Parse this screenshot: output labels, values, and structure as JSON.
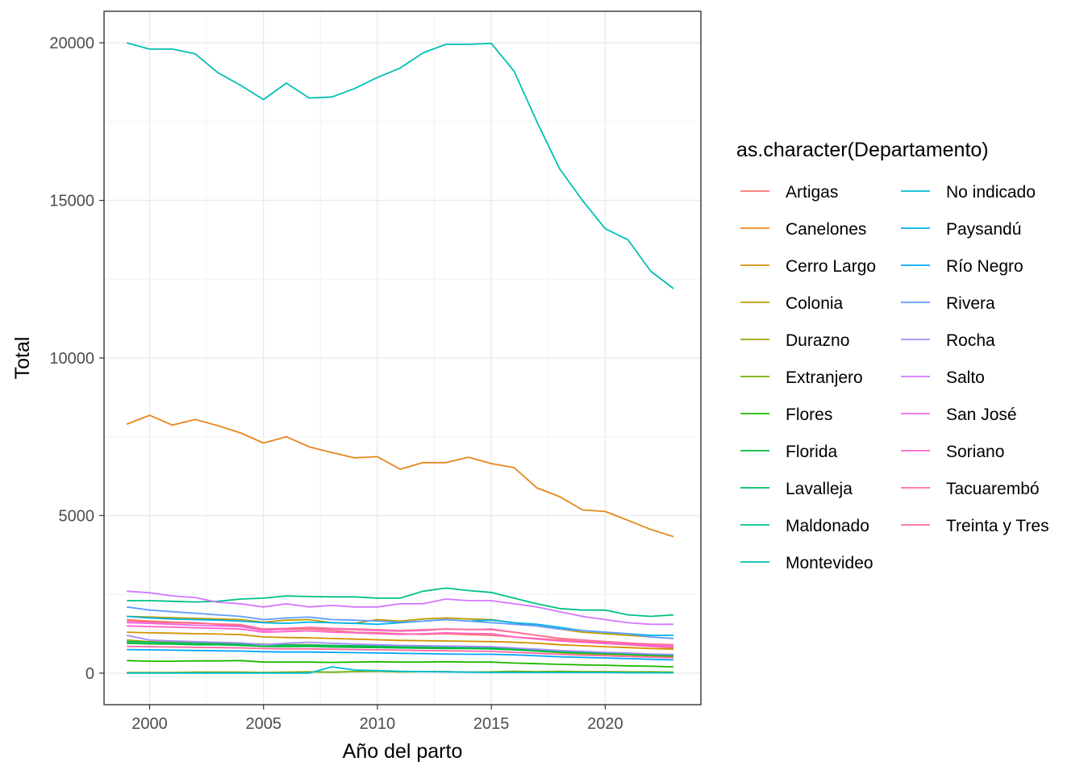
{
  "chart_data": {
    "type": "line",
    "xlabel": "Año del parto",
    "ylabel": "Total",
    "xlim": [
      1998,
      2024.2
    ],
    "ylim": [
      -1000,
      21000
    ],
    "x_ticks": [
      2000,
      2005,
      2010,
      2015,
      2020
    ],
    "y_ticks": [
      0,
      5000,
      10000,
      15000,
      20000
    ],
    "grid": true,
    "legend_title": "as.character(Departamento)",
    "legend_position": "right",
    "x": [
      1999,
      2000,
      2001,
      2002,
      2003,
      2004,
      2005,
      2006,
      2007,
      2008,
      2009,
      2010,
      2011,
      2012,
      2013,
      2014,
      2015,
      2016,
      2017,
      2018,
      2019,
      2020,
      2021,
      2022,
      2023
    ],
    "series": [
      {
        "name": "Artigas",
        "color": "#F8766D",
        "values": [
          1700,
          1650,
          1620,
          1600,
          1550,
          1500,
          1400,
          1380,
          1400,
          1350,
          1300,
          1280,
          1250,
          1230,
          1250,
          1220,
          1200,
          1150,
          1100,
          1050,
          1000,
          950,
          900,
          850,
          800
        ]
      },
      {
        "name": "Canelones",
        "color": "#E7861B",
        "values": [
          7900,
          8180,
          7870,
          8050,
          7850,
          7620,
          7300,
          7500,
          7180,
          7000,
          6830,
          6870,
          6470,
          6680,
          6680,
          6850,
          6650,
          6520,
          5880,
          5600,
          5180,
          5130,
          4850,
          4560,
          4330
        ]
      },
      {
        "name": "Cerro Largo",
        "color": "#D39200",
        "values": [
          1300,
          1280,
          1270,
          1250,
          1240,
          1220,
          1150,
          1130,
          1120,
          1100,
          1080,
          1060,
          1040,
          1030,
          1020,
          1010,
          1000,
          980,
          950,
          900,
          870,
          840,
          810,
          780,
          760
        ]
      },
      {
        "name": "Colonia",
        "color": "#BB9D00",
        "values": [
          1800,
          1780,
          1760,
          1740,
          1720,
          1700,
          1620,
          1680,
          1700,
          1600,
          1580,
          1700,
          1650,
          1720,
          1750,
          1720,
          1700,
          1600,
          1500,
          1400,
          1300,
          1250,
          1200,
          1150,
          1100
        ]
      },
      {
        "name": "Durazno",
        "color": "#9CA700",
        "values": [
          1050,
          1000,
          980,
          970,
          960,
          950,
          920,
          900,
          900,
          880,
          850,
          820,
          810,
          800,
          800,
          790,
          780,
          750,
          700,
          650,
          620,
          600,
          580,
          550,
          520
        ]
      },
      {
        "name": "Extranjero",
        "color": "#72B000",
        "values": [
          20,
          20,
          20,
          30,
          30,
          30,
          20,
          30,
          40,
          30,
          50,
          60,
          40,
          50,
          50,
          30,
          40,
          60,
          50,
          60,
          50,
          50,
          40,
          40,
          30
        ]
      },
      {
        "name": "Flores",
        "color": "#1FB700",
        "values": [
          400,
          380,
          380,
          390,
          390,
          400,
          350,
          350,
          350,
          340,
          350,
          360,
          350,
          350,
          360,
          350,
          350,
          320,
          300,
          280,
          260,
          250,
          230,
          220,
          200
        ]
      },
      {
        "name": "Florida",
        "color": "#00BA38",
        "values": [
          950,
          930,
          920,
          900,
          900,
          880,
          850,
          840,
          850,
          830,
          820,
          810,
          800,
          790,
          780,
          780,
          770,
          740,
          700,
          670,
          640,
          620,
          600,
          570,
          550
        ]
      },
      {
        "name": "Lavalleja",
        "color": "#00BD61",
        "values": [
          1000,
          980,
          960,
          950,
          930,
          920,
          900,
          890,
          890,
          880,
          870,
          860,
          850,
          840,
          830,
          820,
          810,
          780,
          740,
          700,
          670,
          650,
          620,
          600,
          580
        ]
      },
      {
        "name": "Maldonado",
        "color": "#00C08B",
        "values": [
          2300,
          2300,
          2280,
          2260,
          2280,
          2350,
          2380,
          2450,
          2430,
          2420,
          2420,
          2380,
          2380,
          2600,
          2700,
          2620,
          2560,
          2380,
          2200,
          2050,
          2000,
          2000,
          1850,
          1800,
          1850
        ]
      },
      {
        "name": "Montevideo",
        "color": "#00C0B2",
        "values": [
          20000,
          19800,
          19800,
          19650,
          19050,
          18650,
          18200,
          18720,
          18250,
          18280,
          18550,
          18900,
          19200,
          19680,
          19950,
          19950,
          19980,
          19100,
          17500,
          16000,
          15000,
          14100,
          13750,
          12750,
          12200
        ]
      },
      {
        "name": "No indicado",
        "color": "#00BCD6",
        "values": [
          0,
          0,
          0,
          0,
          0,
          0,
          0,
          0,
          0,
          200,
          100,
          80,
          60,
          50,
          40,
          30,
          20,
          20,
          20,
          20,
          20,
          20,
          10,
          10,
          10
        ]
      },
      {
        "name": "Paysandú",
        "color": "#00B4EF",
        "values": [
          1800,
          1750,
          1720,
          1700,
          1680,
          1650,
          1600,
          1580,
          1620,
          1600,
          1580,
          1550,
          1600,
          1650,
          1700,
          1650,
          1680,
          1600,
          1550,
          1450,
          1350,
          1300,
          1250,
          1200,
          1200
        ]
      },
      {
        "name": "Río Negro",
        "color": "#00A6FF",
        "values": [
          750,
          740,
          730,
          720,
          710,
          700,
          680,
          670,
          670,
          660,
          650,
          640,
          630,
          620,
          610,
          600,
          600,
          580,
          550,
          520,
          500,
          480,
          460,
          440,
          420
        ]
      },
      {
        "name": "Rivera",
        "color": "#619CFF",
        "values": [
          2100,
          2000,
          1950,
          1900,
          1850,
          1800,
          1700,
          1750,
          1780,
          1700,
          1680,
          1650,
          1620,
          1650,
          1700,
          1650,
          1600,
          1550,
          1500,
          1400,
          1350,
          1300,
          1250,
          1150,
          1100
        ]
      },
      {
        "name": "Rocha",
        "color": "#A58AFF",
        "values": [
          1200,
          1050,
          1020,
          1000,
          980,
          960,
          900,
          950,
          980,
          950,
          920,
          900,
          880,
          870,
          860,
          850,
          840,
          800,
          760,
          720,
          690,
          660,
          640,
          610,
          590
        ]
      },
      {
        "name": "Salto",
        "color": "#D277FF",
        "values": [
          2600,
          2550,
          2450,
          2400,
          2250,
          2200,
          2100,
          2200,
          2100,
          2150,
          2100,
          2100,
          2200,
          2200,
          2350,
          2300,
          2300,
          2200,
          2100,
          1950,
          1800,
          1700,
          1600,
          1550,
          1550
        ]
      },
      {
        "name": "San José",
        "color": "#F066EA",
        "values": [
          1600,
          1580,
          1550,
          1520,
          1500,
          1480,
          1350,
          1400,
          1450,
          1400,
          1380,
          1350,
          1330,
          1350,
          1400,
          1380,
          1400,
          1300,
          1200,
          1100,
          1050,
          1000,
          950,
          900,
          880
        ]
      },
      {
        "name": "Soriano",
        "color": "#FF61C9",
        "values": [
          1500,
          1480,
          1460,
          1440,
          1420,
          1400,
          1300,
          1320,
          1340,
          1300,
          1280,
          1250,
          1230,
          1250,
          1280,
          1260,
          1250,
          1150,
          1080,
          1020,
          980,
          940,
          900,
          860,
          830
        ]
      },
      {
        "name": "Tacuarembó",
        "color": "#FF6C91",
        "values": [
          1650,
          1620,
          1600,
          1580,
          1560,
          1540,
          1400,
          1420,
          1450,
          1420,
          1400,
          1380,
          1350,
          1380,
          1400,
          1390,
          1380,
          1300,
          1200,
          1100,
          1050,
          1000,
          960,
          920,
          900
        ]
      },
      {
        "name": "Treinta y Tres",
        "color": "#FF68A1",
        "values": [
          850,
          840,
          830,
          820,
          810,
          800,
          780,
          770,
          770,
          760,
          750,
          740,
          730,
          720,
          710,
          700,
          690,
          660,
          630,
          600,
          570,
          550,
          530,
          510,
          490
        ]
      }
    ]
  }
}
